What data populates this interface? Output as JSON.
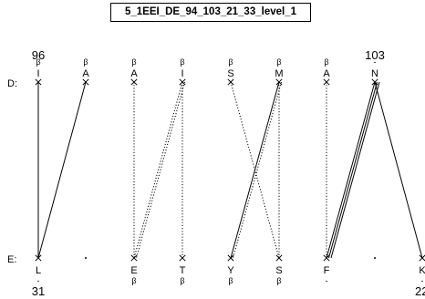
{
  "title": "5_1EEI_DE_94_103_21_33_level_1",
  "chains": {
    "top": {
      "label": "D:",
      "start_number": "96",
      "end_number": "103"
    },
    "bottom": {
      "label": "E:",
      "start_number": "31",
      "end_number": "22"
    }
  },
  "top_residues": [
    {
      "letter": "I",
      "ss": "β"
    },
    {
      "letter": "A",
      "ss": "β"
    },
    {
      "letter": "A",
      "ss": "β"
    },
    {
      "letter": "I",
      "ss": "β"
    },
    {
      "letter": "S",
      "ss": "β"
    },
    {
      "letter": "M",
      "ss": "β"
    },
    {
      "letter": "A",
      "ss": "β"
    },
    {
      "letter": "N",
      "ss": "-"
    }
  ],
  "bottom_residues": [
    {
      "letter": "L",
      "ss": "-"
    },
    {
      "letter": "",
      "ss": "",
      "gap": true
    },
    {
      "letter": "E",
      "ss": "β"
    },
    {
      "letter": "T",
      "ss": "β"
    },
    {
      "letter": "Y",
      "ss": "β"
    },
    {
      "letter": "S",
      "ss": "β"
    },
    {
      "letter": "F",
      "ss": "-"
    },
    {
      "letter": "",
      "ss": "",
      "gap": true
    },
    {
      "letter": "K",
      "ss": "-"
    }
  ],
  "links": [
    {
      "top": 0,
      "bottom": 0,
      "style": "solid"
    },
    {
      "top": 1,
      "bottom": 0,
      "style": "solid"
    },
    {
      "top": 2,
      "bottom": 2,
      "style": "dotted"
    },
    {
      "top": 3,
      "bottom": 2,
      "style": "dotted"
    },
    {
      "top": 3,
      "bottom": 2,
      "style": "dotted"
    },
    {
      "top": 3,
      "bottom": 3,
      "style": "dotted"
    },
    {
      "top": 4,
      "bottom": 5,
      "style": "dotted"
    },
    {
      "top": 5,
      "bottom": 4,
      "style": "solid"
    },
    {
      "top": 5,
      "bottom": 4,
      "style": "dotted"
    },
    {
      "top": 5,
      "bottom": 5,
      "style": "dotted"
    },
    {
      "top": 6,
      "bottom": 6,
      "style": "dotted"
    },
    {
      "top": 7,
      "bottom": 6,
      "style": "solid"
    },
    {
      "top": 7,
      "bottom": 6,
      "style": "solid"
    },
    {
      "top": 7,
      "bottom": 6,
      "style": "solid"
    },
    {
      "top": 7,
      "bottom": 8,
      "style": "solid"
    }
  ]
}
